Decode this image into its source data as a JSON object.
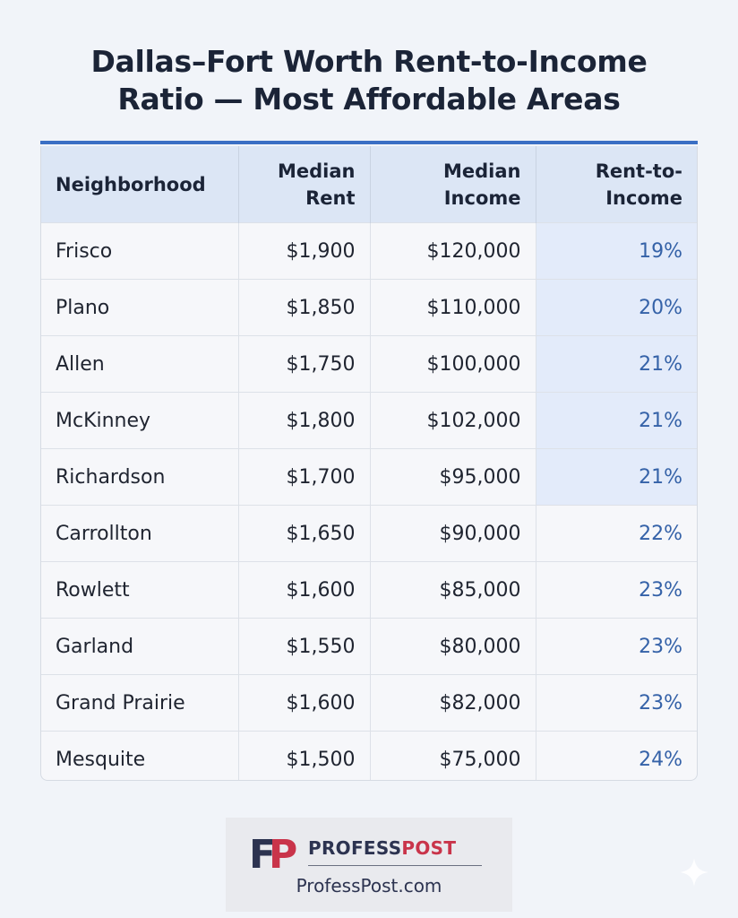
{
  "title_line1": "Dallas–Fort Worth Rent-to-Income",
  "title_line2": "Ratio — Most Affordable Areas",
  "table": {
    "headers": {
      "neighborhood": "Neighborhood",
      "rent_line1": "Median",
      "rent_line2": "Rent",
      "income_line1": "Median",
      "income_line2": "Income",
      "ratio_line1": "Rent-to-",
      "ratio_line2": "Income"
    },
    "rows": [
      {
        "neighborhood": "Frisco",
        "rent": "$1,900",
        "income": "$120,000",
        "ratio": "19%"
      },
      {
        "neighborhood": "Plano",
        "rent": "$1,850",
        "income": "$110,000",
        "ratio": "20%"
      },
      {
        "neighborhood": "Allen",
        "rent": "$1,750",
        "income": "$100,000",
        "ratio": "21%"
      },
      {
        "neighborhood": "McKinney",
        "rent": "$1,800",
        "income": "$102,000",
        "ratio": "21%"
      },
      {
        "neighborhood": "Richardson",
        "rent": "$1,700",
        "income": "$95,000",
        "ratio": "21%"
      },
      {
        "neighborhood": "Carrollton",
        "rent": "$1,650",
        "income": "$90,000",
        "ratio": "22%"
      },
      {
        "neighborhood": "Rowlett",
        "rent": "$1,600",
        "income": "$85,000",
        "ratio": "23%"
      },
      {
        "neighborhood": "Garland",
        "rent": "$1,550",
        "income": "$80,000",
        "ratio": "23%"
      },
      {
        "neighborhood": "Grand Prairie",
        "rent": "$1,600",
        "income": "$82,000",
        "ratio": "23%"
      },
      {
        "neighborhood": "Mesquite",
        "rent": "$1,500",
        "income": "$75,000",
        "ratio": "24%"
      }
    ],
    "highlighted_rows": 5
  },
  "chart_data": {
    "type": "table",
    "title": "Dallas–Fort Worth Rent-to-Income Ratio — Most Affordable Areas",
    "columns": [
      "Neighborhood",
      "Median Rent",
      "Median Income",
      "Rent-to-Income"
    ],
    "rows": [
      [
        "Frisco",
        "$1,900",
        "$120,000",
        "19%"
      ],
      [
        "Plano",
        "$1,850",
        "$110,000",
        "20%"
      ],
      [
        "Allen",
        "$1,750",
        "$100,000",
        "21%"
      ],
      [
        "McKinney",
        "$1,800",
        "$102,000",
        "21%"
      ],
      [
        "Richardson",
        "$1,700",
        "$95,000",
        "21%"
      ],
      [
        "Carrollton",
        "$1,650",
        "$90,000",
        "22%"
      ],
      [
        "Rowlett",
        "$1,600",
        "$85,000",
        "23%"
      ],
      [
        "Garland",
        "$1,550",
        "$80,000",
        "23%"
      ],
      [
        "Grand Prairie",
        "$1,600",
        "$82,000",
        "23%"
      ],
      [
        "Mesquite",
        "$1,500",
        "$75,000",
        "24%"
      ]
    ]
  },
  "logo": {
    "monogram_f": "F",
    "monogram_p": "P",
    "name_part1": "PROFESS",
    "name_part2": "POST",
    "url": "ProfessPost.com"
  },
  "colors": {
    "accent": "#3a6fc4",
    "header_bg": "#dce6f5",
    "ratio_text": "#3562a8",
    "highlight_bg": "#e3ebfa",
    "logo_dark": "#2c3350",
    "logo_red": "#c9344a"
  },
  "icons": {
    "watermark": "sparkle-icon"
  }
}
